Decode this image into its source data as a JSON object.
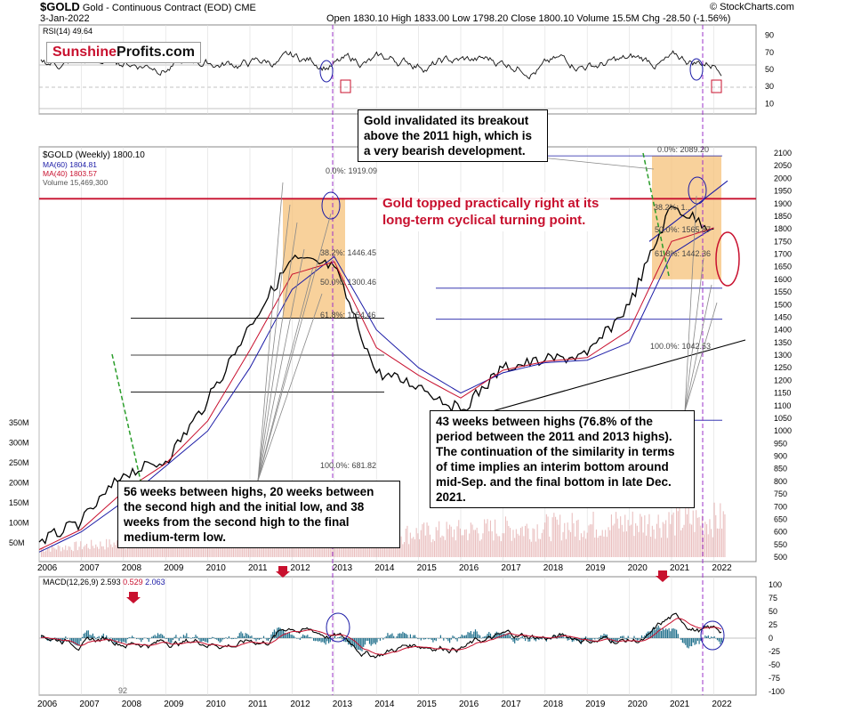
{
  "header": {
    "symbol": "$GOLD",
    "name": "Gold - Continuous Contract (EOD)",
    "exchange": "CME",
    "date": "3-Jan-2022",
    "ohlc": "Open 1830.10  High 1833.00  Low 1798.20  Close 1800.10  Volume 15.5M  Chg -28.50 (-1.56%)",
    "brand": "© StockCharts.com"
  },
  "logo": {
    "part1": "Sunshine",
    "part2": "Profits.com"
  },
  "legend": {
    "rsi": "RSI(14) 49.64",
    "gold": "$GOLD (Weekly) 1800.10",
    "ma60": "MA(60) 1804.81",
    "ma40": "MA(40) 1803.57",
    "volume": "Volume 15,469,300",
    "macd_name": "MACD(12,26,9)",
    "macd_v1": "2.593",
    "macd_v2": "0.529",
    "macd_v3": "2.063",
    "macd_extra": "92"
  },
  "callouts": {
    "top": "Gold invalidated its breakout above the 2011 high, which is a very bearish development.",
    "red": "Gold topped practically right at its long-term cyclical turning point.",
    "left": "56 weeks between highs, 20 weeks between the second high and the initial low, and 38 weeks from the second high to the final medium-term low.",
    "right": "43 weeks between highs (76.8% of the period between the 2011 and 2013 highs). The continuation of the similarity in terms of time implies an interim bottom around mid-Sep. and the final bottom in late Dec. 2021."
  },
  "fib_labels": {
    "f2011_0": "0.0%: 1919.09",
    "f2011_38": "38.2%: 1446.45",
    "f2011_50": "50.0%: 1300.46",
    "f2011_61": "61.8%: 1154.46",
    "f2011_100": "100.0%: 681.82",
    "f2020_0": "0.0%: 2089.20",
    "f2020_38": "38.2%: 1...",
    "f2020_50": "50.0%: 1565.87",
    "f2020_61": "61.8%: 1442.36",
    "f2020_100": "100.0%: 1042.53"
  },
  "colors": {
    "red": "#c8102e",
    "blue": "#1a1aa6",
    "fib_box": "#f5c27a",
    "macd_hist": "#1f6f8b",
    "dashed_green": "#2a9d2a",
    "purple": "#9b30c9"
  },
  "chart_data": {
    "type": "line",
    "x": [
      "2006",
      "2007",
      "2008",
      "2009",
      "2010",
      "2011",
      "2012",
      "2013",
      "2014",
      "2015",
      "2016",
      "2017",
      "2018",
      "2019",
      "2020",
      "2021",
      "2022"
    ],
    "price_axis": [
      500,
      550,
      600,
      650,
      700,
      750,
      800,
      850,
      900,
      950,
      1000,
      1050,
      1100,
      1150,
      1200,
      1250,
      1300,
      1350,
      1400,
      1450,
      1500,
      1550,
      1600,
      1650,
      1700,
      1750,
      1800,
      1850,
      1900,
      1950,
      2000,
      2050,
      2100
    ],
    "volume_axis": [
      "50M",
      "100M",
      "150M",
      "200M",
      "250M",
      "300M",
      "350M"
    ],
    "rsi_axis": [
      10,
      30,
      50,
      70,
      90
    ],
    "macd_axis": [
      -100,
      -75,
      -50,
      -25,
      0,
      25,
      50,
      75,
      100
    ],
    "series": [
      {
        "name": "$GOLD (Weekly)",
        "values": [
          560,
          640,
          830,
          880,
          1120,
          1420,
          1680,
          1650,
          1230,
          1180,
          1080,
          1250,
          1280,
          1300,
          1500,
          1890,
          1800
        ]
      },
      {
        "name": "MA(60)",
        "values": [
          520,
          600,
          720,
          860,
          1000,
          1250,
          1560,
          1690,
          1400,
          1250,
          1150,
          1230,
          1270,
          1280,
          1350,
          1700,
          1804.81
        ]
      },
      {
        "name": "MA(40)",
        "values": [
          530,
          610,
          760,
          870,
          1040,
          1320,
          1620,
          1670,
          1330,
          1220,
          1130,
          1240,
          1275,
          1290,
          1400,
          1750,
          1803.57
        ]
      }
    ],
    "horizontal_level": 1919.09,
    "ylim": [
      480,
      2110
    ]
  }
}
